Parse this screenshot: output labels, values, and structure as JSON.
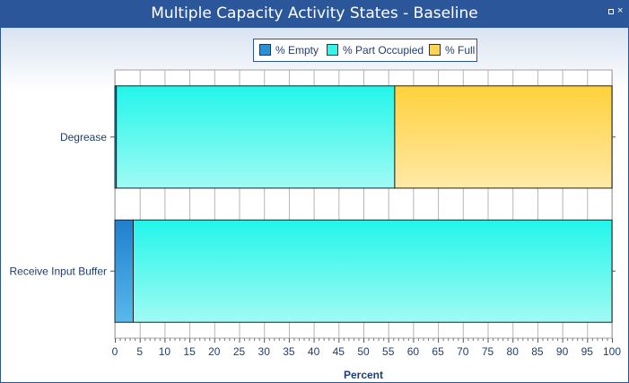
{
  "window": {
    "title": "Multiple Capacity Activity States - Baseline",
    "restore_icon": "restore-icon",
    "close_icon": "close-icon",
    "close_glyph": "×"
  },
  "legend": {
    "items": [
      {
        "label": "% Empty",
        "color": "#2e8fd6"
      },
      {
        "label": "% Part Occupied",
        "color": "#33f5ea"
      },
      {
        "label": "% Full",
        "color": "#ffd54f"
      }
    ]
  },
  "chart_data": {
    "type": "bar",
    "orientation": "horizontal",
    "stacked": true,
    "title": "Multiple Capacity Activity States - Baseline",
    "xlabel": "Percent",
    "ylabel": "",
    "xlim": [
      0,
      100
    ],
    "x_ticks": [
      0,
      5,
      10,
      15,
      20,
      25,
      30,
      35,
      40,
      45,
      50,
      55,
      60,
      65,
      70,
      75,
      80,
      85,
      90,
      95,
      100
    ],
    "grid": true,
    "legend_position": "top-center",
    "categories": [
      "Degrease",
      "Receive Input Buffer"
    ],
    "series": [
      {
        "name": "% Empty",
        "values": [
          0.3,
          3.7
        ]
      },
      {
        "name": "% Part Occupied",
        "values": [
          56.0,
          96.3
        ]
      },
      {
        "name": "% Full",
        "values": [
          43.7,
          0
        ]
      }
    ]
  }
}
